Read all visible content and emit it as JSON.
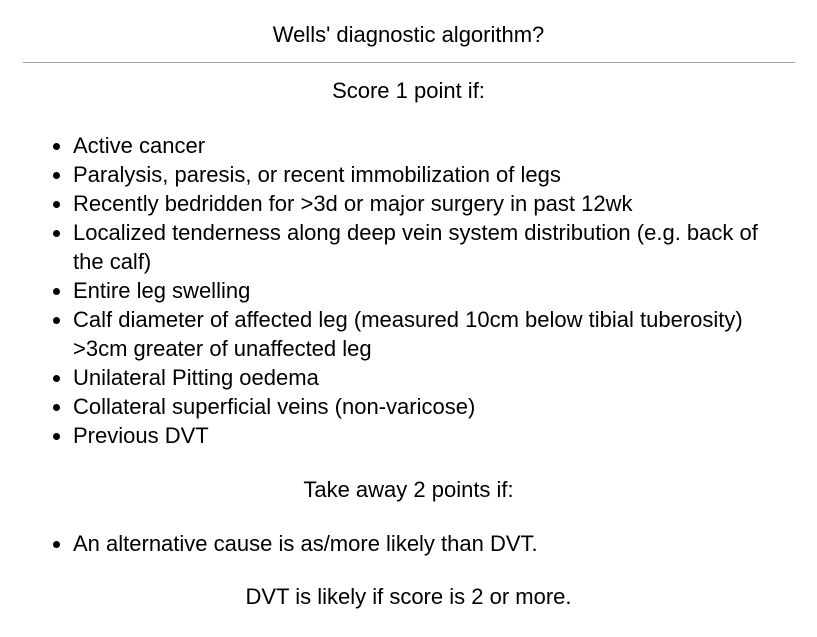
{
  "title": "Wells' diagnostic algorithm?",
  "score_heading": "Score 1 point if:",
  "score_items": [
    "Active cancer",
    "Paralysis, paresis, or recent immobilization of legs",
    "Recently bedridden for >3d or major surgery in past 12wk",
    "Localized tenderness along deep vein system distribution (e.g. back of the calf)",
    "Entire leg swelling",
    "Calf diameter of affected leg (measured 10cm below tibial tuberosity) >3cm greater of unaffected leg",
    "Unilateral Pitting oedema",
    "Collateral superficial veins (non-varicose)",
    "Previous DVT"
  ],
  "subtract_heading": "Take away 2 points if:",
  "subtract_items": [
    "An alternative cause is as/more likely than DVT."
  ],
  "conclusion": "DVT is likely if score is 2 or more."
}
